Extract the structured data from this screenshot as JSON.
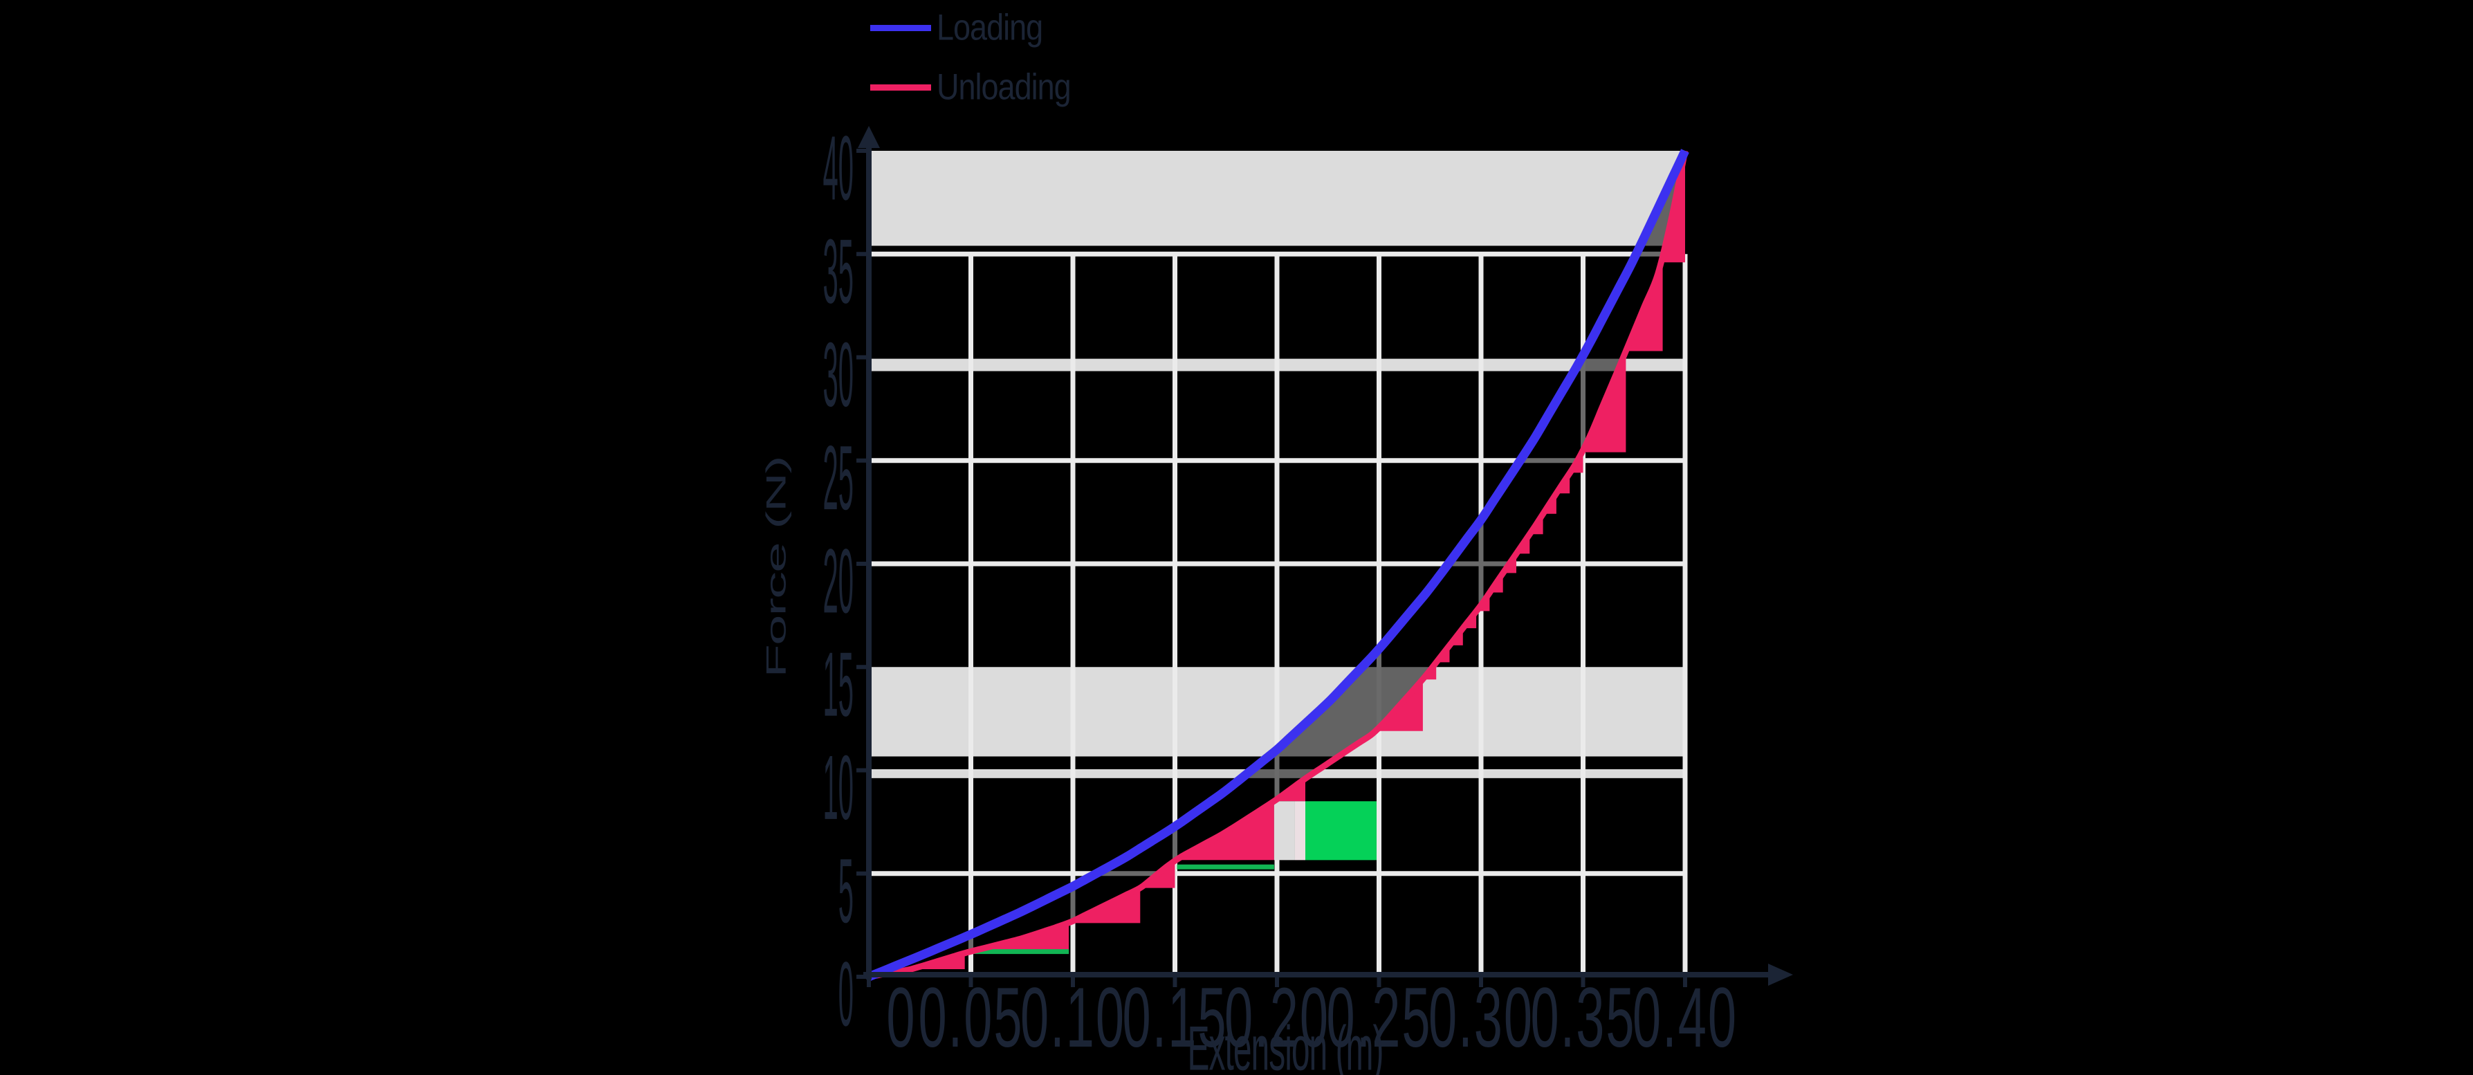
{
  "page": {
    "background": "#000000",
    "ink_color": "#1b2435"
  },
  "chart_data": {
    "type": "line",
    "title": "",
    "xlabel": "Extension (m)",
    "ylabel": "Force (N)",
    "xlim": [
      0,
      0.4
    ],
    "ylim": [
      0,
      40
    ],
    "grid": true,
    "legend_position": "top-left",
    "x_ticks": {
      "values": [
        0,
        0.05,
        0.1,
        0.15,
        0.2,
        0.25,
        0.3,
        0.35,
        0.4
      ],
      "labels": [
        "0",
        "0.05",
        "0.10",
        "0.15",
        "0.20",
        "0.25",
        "0.30",
        "0.35",
        "0.40"
      ]
    },
    "y_ticks": {
      "values": [
        0,
        5,
        10,
        15,
        20,
        25,
        30,
        35,
        40
      ],
      "labels": [
        "0",
        "5",
        "10",
        "15",
        "20",
        "25",
        "30",
        "35",
        "40"
      ]
    },
    "legend": [
      {
        "label": "Loading",
        "color": "#3c31f0"
      },
      {
        "label": "Unloading",
        "color": "#ee2062"
      }
    ],
    "series": [
      {
        "name": "Loading",
        "color": "#3c31f0",
        "x": [
          0,
          0.025,
          0.05,
          0.075,
          0.1,
          0.125,
          0.15,
          0.175,
          0.2,
          0.225,
          0.25,
          0.275,
          0.3,
          0.325,
          0.35,
          0.375,
          0.4
        ],
        "y": [
          0,
          1.01,
          2.05,
          3.16,
          4.38,
          5.73,
          7.27,
          9.01,
          11.0,
          13.27,
          15.86,
          18.81,
          22.13,
          25.87,
          30.07,
          34.77,
          40
        ]
      },
      {
        "name": "Unloading",
        "color": "#ee2062",
        "x": [
          0,
          0.021,
          0.047,
          0.075,
          0.098,
          0.133,
          0.15,
          0.175,
          0.1986,
          0.2139,
          0.2488,
          0.2715,
          0.3,
          0.325,
          0.35,
          0.371,
          0.389,
          0.4
        ],
        "y": [
          0,
          0.37,
          1.15,
          1.85,
          2.6,
          4.3,
          5.65,
          7.0,
          8.5,
          9.6,
          11.9,
          14.4,
          18.0,
          21.6,
          25.4,
          30.3,
          34.6,
          40
        ]
      }
    ],
    "riemann_steps": [
      [
        0.021,
        0.047,
        0.37
      ],
      [
        0.047,
        0.098,
        1.15
      ],
      [
        0.098,
        0.133,
        2.6
      ],
      [
        0.133,
        0.15,
        4.3
      ],
      [
        0.15,
        0.1986,
        5.65
      ],
      [
        0.1986,
        0.2139,
        8.5
      ],
      [
        0.2488,
        0.2715,
        11.9
      ],
      [
        0.2715,
        0.27804,
        14.4
      ],
      [
        0.27804,
        0.28458,
        15.23
      ],
      [
        0.28458,
        0.29112,
        16.05
      ],
      [
        0.29112,
        0.29767,
        16.88
      ],
      [
        0.29767,
        0.30421,
        17.71
      ],
      [
        0.30421,
        0.31075,
        18.61
      ],
      [
        0.31075,
        0.31729,
        19.55
      ],
      [
        0.31729,
        0.32383,
        20.49
      ],
      [
        0.32383,
        0.33037,
        21.43
      ],
      [
        0.33037,
        0.33692,
        22.42
      ],
      [
        0.33692,
        0.34346,
        23.41
      ],
      [
        0.34346,
        0.35,
        24.41
      ],
      [
        0.35,
        0.371,
        25.4
      ],
      [
        0.371,
        0.389,
        30.3
      ],
      [
        0.389,
        0.4,
        34.6
      ]
    ],
    "highlight": {
      "green_rect": {
        "x0": 0.2139,
        "x1": 0.2488,
        "y0": 5.65,
        "y1": 8.5,
        "color": "#05d158"
      },
      "gray_strip": {
        "x0": 0.1986,
        "x1": 0.2088,
        "y0": 5.65,
        "y1": 8.5,
        "color": "#dcdcdc"
      },
      "blush_strip": {
        "x0": 0.2088,
        "x1": 0.2139,
        "y0": 5.65,
        "y1": 8.5,
        "color": "#ecdfe3"
      },
      "green_lines": [
        {
          "x0": 0.0495,
          "x1": 0.098,
          "y": 1.22,
          "color": "#12b554"
        },
        {
          "x0": 0.151,
          "x1": 0.1986,
          "y": 5.32,
          "color": "#12b554"
        }
      ]
    },
    "gray_bands": [
      {
        "y0": 35.4,
        "y1": 40.0
      },
      {
        "y0": 10.67,
        "y1": 15.0
      }
    ],
    "thick_gridlines": [
      {
        "y0": 9.62,
        "y1": 10.05
      },
      {
        "y0": 29.33,
        "y1": 29.93
      }
    ],
    "h_gridlines": [
      5,
      20,
      25,
      35
    ],
    "v_gridlines": [
      0.05,
      0.1,
      0.15,
      0.2,
      0.25,
      0.3,
      0.35,
      0.4
    ],
    "colors": {
      "band": "#dcdcdc",
      "gridline": "#ebebeb",
      "between_curves_shade": "rgba(0,0,0,0.55)",
      "axis": "#1b2435"
    }
  }
}
